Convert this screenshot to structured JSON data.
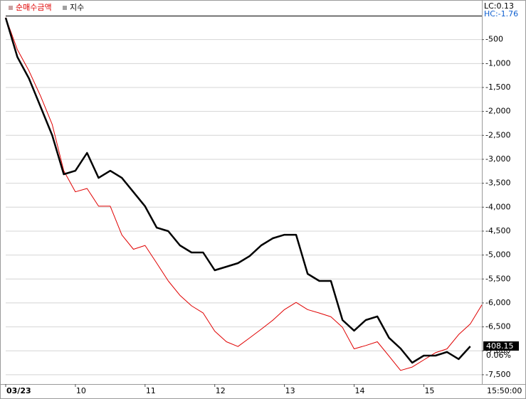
{
  "chart_data": {
    "type": "line",
    "x": [
      9,
      9.167,
      9.333,
      9.5,
      9.667,
      9.833,
      10,
      10.167,
      10.333,
      10.5,
      10.667,
      10.833,
      11,
      11.167,
      11.333,
      11.5,
      11.667,
      11.833,
      12,
      12.167,
      12.333,
      12.5,
      12.667,
      12.833,
      13,
      13.167,
      13.333,
      13.5,
      13.667,
      13.833,
      14,
      14.167,
      14.333,
      14.5,
      14.667,
      14.833,
      15,
      15.167,
      15.333,
      15.5,
      15.667,
      15.833
    ],
    "xlim": [
      9,
      15.833
    ],
    "xticks": [
      {
        "value": 9,
        "label": "03/23"
      },
      10,
      11,
      12,
      13,
      14,
      15
    ],
    "x_end_label": "15:50:00",
    "ylim": [
      -7650,
      0
    ],
    "yticks": [
      -500,
      {
        "value": -1000,
        "label": "-1,000"
      },
      {
        "value": -1500,
        "label": "-1,500"
      },
      {
        "value": -2000,
        "label": "-2,000"
      },
      {
        "value": -2500,
        "label": "-2,500"
      },
      {
        "value": -3000,
        "label": "-3,000"
      },
      {
        "value": -3500,
        "label": "-3,500"
      },
      {
        "value": -4000,
        "label": "-4,000"
      },
      {
        "value": -4500,
        "label": "-4,500"
      },
      {
        "value": -5000,
        "label": "-5,000"
      },
      {
        "value": -5500,
        "label": "-5,500"
      },
      {
        "value": -6000,
        "label": "-6,000"
      },
      {
        "value": -6500,
        "label": "-6,500"
      },
      {
        "value": -7000,
        "label": "-7,000"
      },
      {
        "value": -7500,
        "label": "-7,500"
      }
    ],
    "y2lim": [
      405.5,
      432.8
    ],
    "grid": true,
    "lc_label": "LC:0.13",
    "hc_label": "HC:-1.76",
    "series": [
      {
        "name": "순매수금액",
        "color": "#e00000",
        "line_width": 1,
        "values": [
          -40,
          -710,
          -1150,
          -1680,
          -2270,
          -3240,
          -3680,
          -3610,
          -3980,
          -3980,
          -4580,
          -4880,
          -4800,
          -5170,
          -5540,
          -5840,
          -6060,
          -6210,
          -6590,
          -6810,
          -6910,
          -6730,
          -6550,
          -6360,
          -6140,
          -5990,
          -6140,
          -6210,
          -6290,
          -6510,
          -6960,
          -6890,
          -6810,
          -7110,
          -7410,
          -7340,
          -7190,
          -7040,
          -6960,
          -6660,
          -6440,
          -6040
        ]
      },
      {
        "name": "지수",
        "color": "#000000",
        "line_width": 2.5,
        "axis": "y2",
        "values": [
          432.64,
          429.72,
          428.13,
          426.01,
          423.89,
          420.98,
          421.24,
          422.57,
          420.71,
          421.24,
          420.71,
          419.65,
          418.59,
          417.0,
          416.74,
          415.68,
          415.15,
          415.15,
          413.82,
          414.09,
          414.35,
          414.88,
          415.68,
          416.21,
          416.47,
          416.47,
          413.56,
          413.03,
          413.03,
          410.11,
          409.32,
          410.11,
          410.38,
          408.79,
          407.99,
          406.93,
          407.46,
          407.46,
          407.73,
          407.2,
          408.15,
          null
        ],
        "last_label": "408.15",
        "change_label": "0.06%"
      }
    ]
  }
}
